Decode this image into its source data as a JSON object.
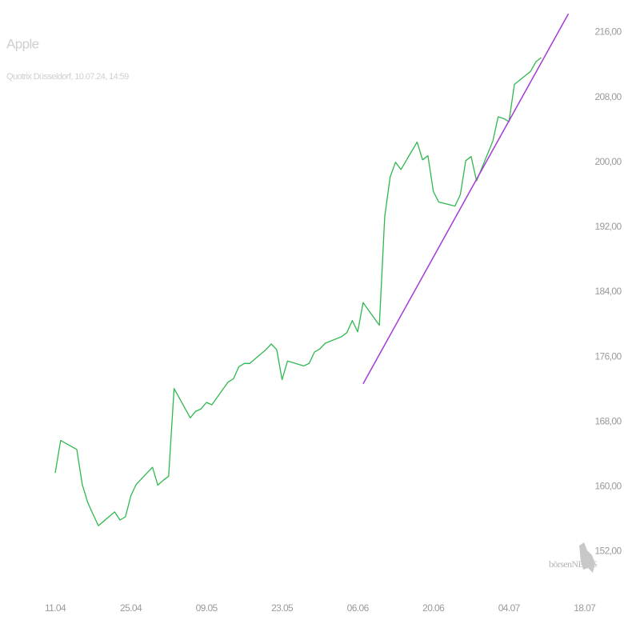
{
  "chart_data": {
    "type": "line",
    "title": "Apple",
    "subtitle": "Quotrix Düsseldorf, 10.07.24, 14:59",
    "watermark": "börsenNEWS",
    "x": [
      "11.04",
      "12.04",
      "15.04",
      "16.04",
      "17.04",
      "18.04",
      "19.04",
      "22.04",
      "23.04",
      "24.04",
      "25.04",
      "26.04",
      "29.04",
      "30.04",
      "01.05",
      "02.05",
      "03.05",
      "06.05",
      "07.05",
      "08.05",
      "09.05",
      "10.05",
      "13.05",
      "14.05",
      "15.05",
      "16.05",
      "17.05",
      "20.05",
      "21.05",
      "22.05",
      "23.05",
      "24.05",
      "27.05",
      "28.05",
      "29.05",
      "30.05",
      "31.05",
      "03.06",
      "04.06",
      "05.06",
      "06.06",
      "07.06",
      "10.06",
      "11.06",
      "12.06",
      "13.06",
      "14.06",
      "17.06",
      "18.06",
      "19.06",
      "20.06",
      "21.06",
      "24.06",
      "25.06",
      "26.06",
      "27.06",
      "28.06",
      "01.07",
      "02.07",
      "03.07",
      "04.07",
      "05.07",
      "08.07",
      "09.07",
      "10.07"
    ],
    "series": [
      {
        "color": "#2fb84f",
        "values": [
          161.7,
          165.7,
          164.6,
          160.3,
          158.1,
          156.6,
          155.2,
          156.9,
          155.9,
          156.3,
          158.9,
          160.3,
          162.4,
          160.2,
          160.8,
          161.3,
          172.1,
          168.5,
          169.3,
          169.6,
          170.4,
          170.1,
          172.9,
          173.3,
          174.8,
          175.2,
          175.2,
          176.9,
          177.6,
          176.9,
          173.2,
          175.5,
          174.9,
          175.2,
          176.6,
          177.0,
          177.7,
          178.5,
          179.0,
          180.5,
          179.1,
          182.7,
          179.9,
          193.3,
          198.2,
          200.0,
          199.1,
          202.5,
          200.3,
          200.8,
          196.4,
          195.1,
          194.6,
          196.0,
          200.2,
          200.7,
          197.7,
          202.6,
          205.6,
          205.4,
          205.0,
          209.6,
          211.2,
          212.4,
          212.9
        ]
      }
    ],
    "trendline": {
      "x": [
        "07.06",
        "15.07"
      ],
      "values": [
        172.7,
        218.3
      ],
      "color": "#a63ad4"
    },
    "xlim": [
      "01.04",
      "21.07"
    ],
    "xticks": [
      "11.04",
      "25.04",
      "09.05",
      "23.05",
      "06.06",
      "20.06",
      "04.07",
      "18.07"
    ],
    "ylim": [
      149,
      220
    ],
    "yticks": [
      {
        "value": 152,
        "label": "152,00"
      },
      {
        "value": 160,
        "label": "160,00"
      },
      {
        "value": 168,
        "label": "168,00"
      },
      {
        "value": 176,
        "label": "176,00"
      },
      {
        "value": 184,
        "label": "184,00"
      },
      {
        "value": 192,
        "label": "192,00"
      },
      {
        "value": 200,
        "label": "200,00"
      },
      {
        "value": 208,
        "label": "208,00"
      },
      {
        "value": 216,
        "label": "216,00"
      }
    ],
    "y_axis_side": "right"
  }
}
